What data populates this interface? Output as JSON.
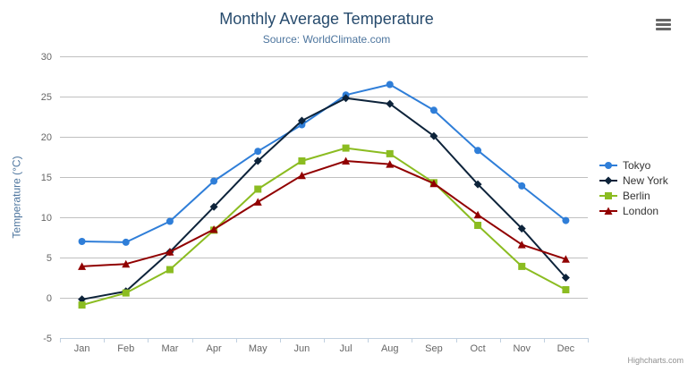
{
  "credits": "Highcharts.com",
  "export_menu": {
    "icon": "hamburger-icon"
  },
  "chart_data": {
    "type": "line",
    "title": "Monthly Average Temperature",
    "subtitle": "Source: WorldClimate.com",
    "categories": [
      "Jan",
      "Feb",
      "Mar",
      "Apr",
      "May",
      "Jun",
      "Jul",
      "Aug",
      "Sep",
      "Oct",
      "Nov",
      "Dec"
    ],
    "series": [
      {
        "name": "Tokyo",
        "color": "#2f7ed8",
        "marker": "circle",
        "values": [
          7.0,
          6.9,
          9.5,
          14.5,
          18.2,
          21.5,
          25.2,
          26.5,
          23.3,
          18.3,
          13.9,
          9.6
        ]
      },
      {
        "name": "New York",
        "color": "#0d233a",
        "marker": "diamond",
        "values": [
          -0.2,
          0.8,
          5.7,
          11.3,
          17.0,
          22.0,
          24.8,
          24.1,
          20.1,
          14.1,
          8.6,
          2.5
        ]
      },
      {
        "name": "Berlin",
        "color": "#8bbc21",
        "marker": "square",
        "values": [
          -0.9,
          0.6,
          3.5,
          8.4,
          13.5,
          17.0,
          18.6,
          17.9,
          14.3,
          9.0,
          3.9,
          1.0
        ]
      },
      {
        "name": "London",
        "color": "#910000",
        "marker": "triangle",
        "values": [
          3.9,
          4.2,
          5.7,
          8.5,
          11.9,
          15.2,
          17.0,
          16.6,
          14.2,
          10.3,
          6.6,
          4.8
        ]
      }
    ],
    "xlabel": "",
    "ylabel": "Temperature (°C)",
    "ylim": [
      -5,
      30
    ],
    "yticks": [
      30,
      25,
      20,
      15,
      10,
      5,
      0,
      -5
    ],
    "grid": true,
    "legend_position": "right",
    "colors": {
      "grid_line": "#c0c0c0",
      "axis_line": "#c0d0e0",
      "tick": "#c0d0e0",
      "axis_label": "#666666",
      "axis_title": "#4d759e",
      "title": "#274b6d",
      "subtitle": "#4d759e",
      "legend_text": "#333333"
    }
  }
}
